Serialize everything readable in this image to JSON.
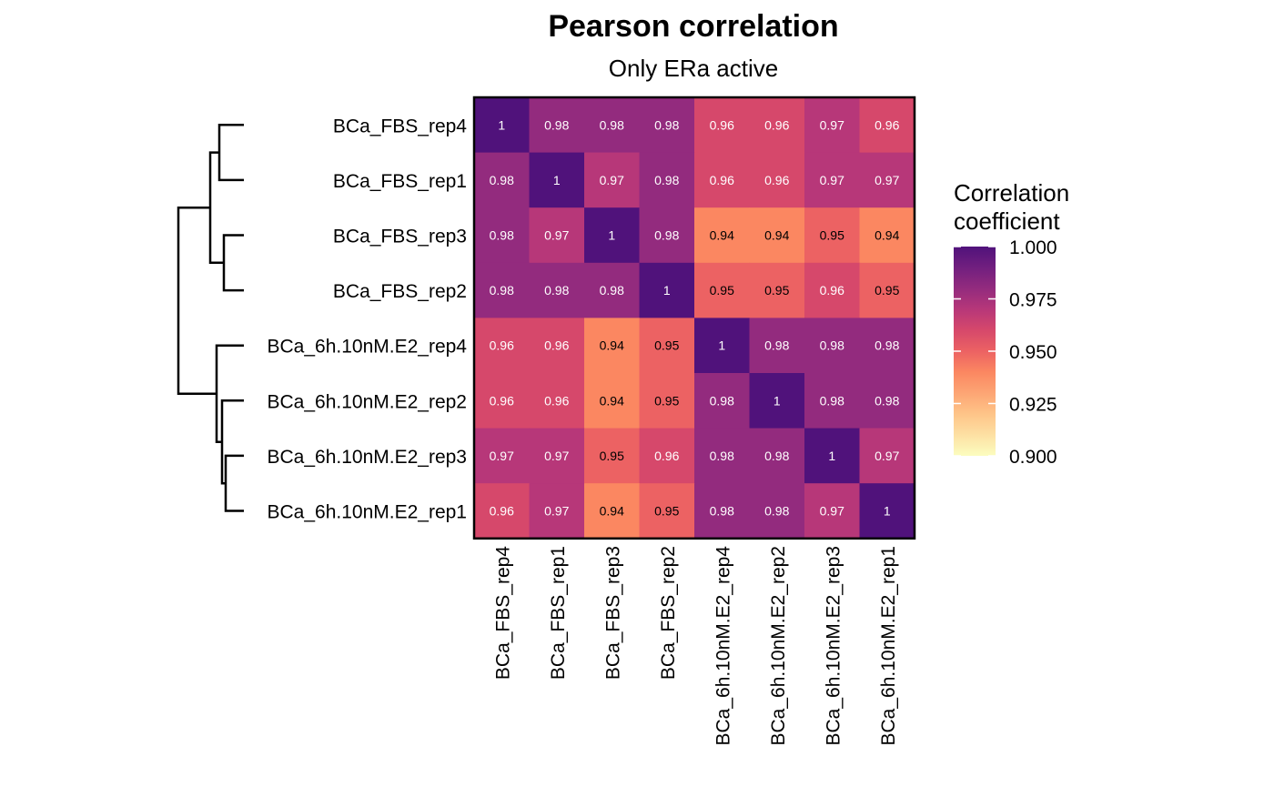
{
  "chart_data": {
    "type": "heatmap",
    "title": "Pearson correlation",
    "subtitle": "Only ERa active",
    "rows": [
      "BCa_FBS_rep4",
      "BCa_FBS_rep1",
      "BCa_FBS_rep3",
      "BCa_FBS_rep2",
      "BCa_6h.10nM.E2_rep4",
      "BCa_6h.10nM.E2_rep2",
      "BCa_6h.10nM.E2_rep3",
      "BCa_6h.10nM.E2_rep1"
    ],
    "columns": [
      "BCa_FBS_rep4",
      "BCa_FBS_rep1",
      "BCa_FBS_rep3",
      "BCa_FBS_rep2",
      "BCa_6h.10nM.E2_rep4",
      "BCa_6h.10nM.E2_rep2",
      "BCa_6h.10nM.E2_rep3",
      "BCa_6h.10nM.E2_rep1"
    ],
    "values": [
      [
        1,
        0.98,
        0.98,
        0.98,
        0.96,
        0.96,
        0.97,
        0.96
      ],
      [
        0.98,
        1,
        0.97,
        0.98,
        0.96,
        0.96,
        0.97,
        0.97
      ],
      [
        0.98,
        0.97,
        1,
        0.98,
        0.94,
        0.94,
        0.95,
        0.94
      ],
      [
        0.98,
        0.98,
        0.98,
        1,
        0.95,
        0.95,
        0.96,
        0.95
      ],
      [
        0.96,
        0.96,
        0.94,
        0.95,
        1,
        0.98,
        0.98,
        0.98
      ],
      [
        0.96,
        0.96,
        0.94,
        0.95,
        0.98,
        1,
        0.98,
        0.98
      ],
      [
        0.97,
        0.97,
        0.95,
        0.96,
        0.98,
        0.98,
        1,
        0.97
      ],
      [
        0.96,
        0.97,
        0.94,
        0.95,
        0.98,
        0.98,
        0.97,
        1
      ]
    ],
    "colorscale": "magma",
    "legend": {
      "title_lines": [
        "Correlation",
        "coefficient"
      ],
      "range": [
        0.9,
        1.0
      ],
      "ticks": [
        1.0,
        0.975,
        0.95,
        0.925,
        0.9
      ],
      "tick_labels": [
        "1.000",
        "0.975",
        "0.950",
        "0.925",
        "0.900"
      ],
      "placement": "right"
    },
    "dendrogram": {
      "side": "left",
      "clusters": [
        [
          [
            "BCa_FBS_rep4",
            "BCa_FBS_rep1"
          ],
          [
            "BCa_FBS_rep3",
            "BCa_FBS_rep2"
          ]
        ],
        [
          "BCa_6h.10nM.E2_rep4",
          [
            "BCa_6h.10nM.E2_rep2",
            [
              "BCa_6h.10nM.E2_rep3",
              "BCa_6h.10nM.E2_rep1"
            ]
          ]
        ]
      ]
    }
  }
}
